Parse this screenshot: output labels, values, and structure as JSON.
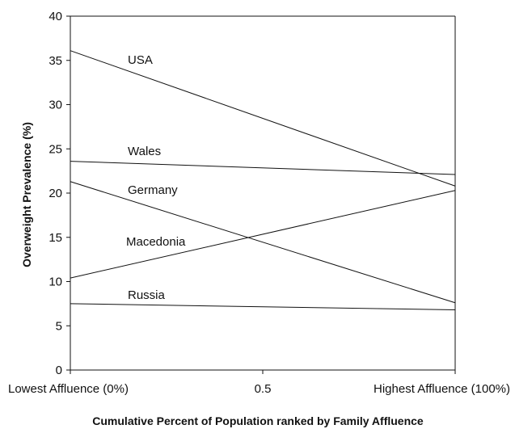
{
  "chart_data": {
    "type": "line",
    "title": "",
    "xlabel": "Cumulative Percent of Population ranked by Family Affluence",
    "ylabel": "Overweight Prevalence (%)",
    "x": [
      0,
      1
    ],
    "x_tick_labels": [
      "Lowest Affluence (0%)",
      "0.5",
      "Highest Affluence (100%)"
    ],
    "x_ticks": [
      0,
      0.5,
      1
    ],
    "xlim": [
      0,
      1
    ],
    "ylim": [
      0,
      40
    ],
    "y_ticks": [
      0,
      5,
      10,
      15,
      20,
      25,
      30,
      35,
      40
    ],
    "grid": false,
    "legend": "none",
    "series": [
      {
        "name": "USA",
        "values": [
          36.1,
          20.8
        ]
      },
      {
        "name": "Wales",
        "values": [
          23.6,
          22.1
        ]
      },
      {
        "name": "Germany",
        "values": [
          21.3,
          7.6
        ]
      },
      {
        "name": "Macedonia",
        "values": [
          10.4,
          20.3
        ]
      },
      {
        "name": "Russia",
        "values": [
          7.5,
          6.8
        ]
      }
    ],
    "colors": {
      "line": "#111111",
      "axis": "#111111"
    }
  }
}
